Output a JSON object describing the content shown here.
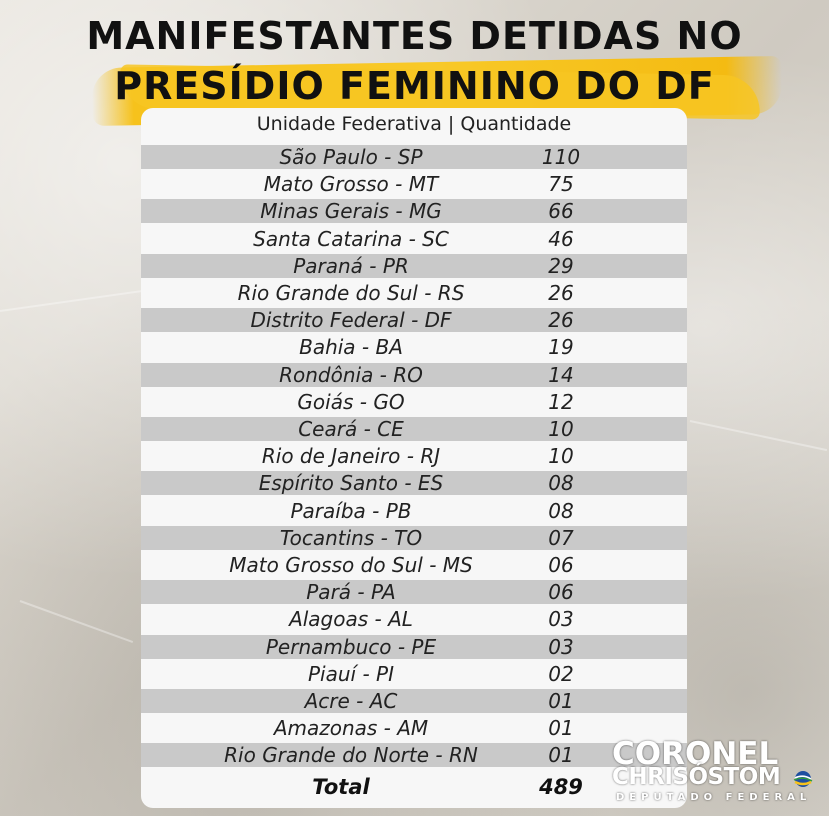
{
  "title_line1": "MANIFESTANTES DETIDAS NO",
  "title_line2": "PRESÍDIO FEMININO DO DF",
  "table": {
    "header": "Unidade Federativa | Quantidade",
    "rows": [
      {
        "state": "São Paulo - SP",
        "qty": "110"
      },
      {
        "state": "Mato Grosso - MT",
        "qty": "75"
      },
      {
        "state": "Minas Gerais - MG",
        "qty": "66"
      },
      {
        "state": "Santa Catarina - SC",
        "qty": "46"
      },
      {
        "state": "Paraná - PR",
        "qty": "29"
      },
      {
        "state": "Rio Grande do Sul - RS",
        "qty": "26"
      },
      {
        "state": "Distrito Federal - DF",
        "qty": "26"
      },
      {
        "state": "Bahia - BA",
        "qty": "19"
      },
      {
        "state": "Rondônia - RO",
        "qty": "14"
      },
      {
        "state": "Goiás - GO",
        "qty": "12"
      },
      {
        "state": "Ceará - CE",
        "qty": "10"
      },
      {
        "state": "Rio de Janeiro - RJ",
        "qty": "10"
      },
      {
        "state": "Espírito Santo - ES",
        "qty": "08"
      },
      {
        "state": "Paraíba - PB",
        "qty": "08"
      },
      {
        "state": "Tocantins - TO",
        "qty": "07"
      },
      {
        "state": "Mato Grosso do Sul - MS",
        "qty": "06"
      },
      {
        "state": "Pará - PA",
        "qty": "06"
      },
      {
        "state": "Alagoas - AL",
        "qty": "03"
      },
      {
        "state": "Pernambuco - PE",
        "qty": "03"
      },
      {
        "state": "Piauí - PI",
        "qty": "02"
      },
      {
        "state": "Acre - AC",
        "qty": "01"
      },
      {
        "state": "Amazonas - AM",
        "qty": "01"
      },
      {
        "state": "Rio Grande do Norte - RN",
        "qty": "01"
      }
    ],
    "total_label": "Total",
    "total_value": "489"
  },
  "logo": {
    "line1": "CORONEL",
    "line2": "CHRISÓSTOM",
    "line3": "DEPUTADO FEDERAL",
    "icon": "brazil-flag-icon"
  },
  "colors": {
    "highlight": "#f6c21c",
    "row_shade": "#c9c9c9",
    "card": "#f7f7f7"
  }
}
